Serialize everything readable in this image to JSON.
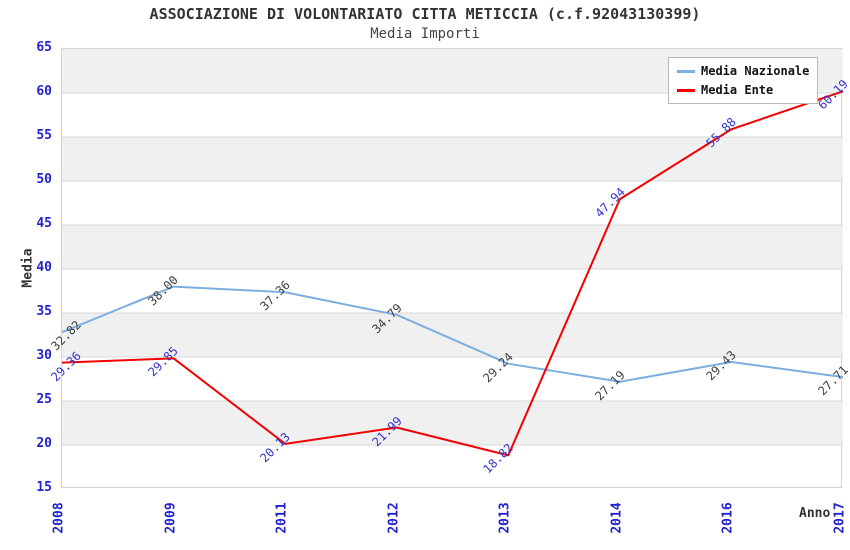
{
  "chart_data": {
    "type": "line",
    "title": "ASSOCIAZIONE DI VOLONTARIATO CITTA METICCIA (c.f.92043130399)",
    "subtitle": "Media Importi",
    "xlabel": "Anno",
    "ylabel": "Media",
    "categories": [
      "2008",
      "2009",
      "2011",
      "2012",
      "2013",
      "2014",
      "2016",
      "2017"
    ],
    "series": [
      {
        "name": "Media Nazionale",
        "color": "#7cafe0",
        "label_color": "#404040",
        "values": [
          32.82,
          38.0,
          37.36,
          34.79,
          29.24,
          27.19,
          29.43,
          27.71
        ]
      },
      {
        "name": "Media Ente",
        "color": "#f40000",
        "label_color": "#3333cc",
        "values": [
          29.36,
          29.85,
          20.13,
          21.99,
          18.82,
          47.94,
          55.88,
          60.19
        ]
      }
    ],
    "ylim": [
      15,
      65
    ],
    "ytick_step": 5,
    "yticks": [
      15,
      20,
      25,
      30,
      35,
      40,
      45,
      50,
      55,
      60,
      65
    ],
    "value_label_decimals": 2,
    "grid": "horizontal-bands-alternating",
    "legend_position": "top-right",
    "legend_entries": [
      "Media Nazionale",
      "Media Ente"
    ],
    "colors": {
      "tick_label": "#2222cc",
      "band_gray": "#f0f0f0",
      "gridline": "#d9d9d9",
      "plot_border": "#d3d3d3",
      "title_text": "#333333",
      "subtitle_text": "#444444",
      "legend_text": "#111111",
      "background": "#ffffff"
    }
  }
}
